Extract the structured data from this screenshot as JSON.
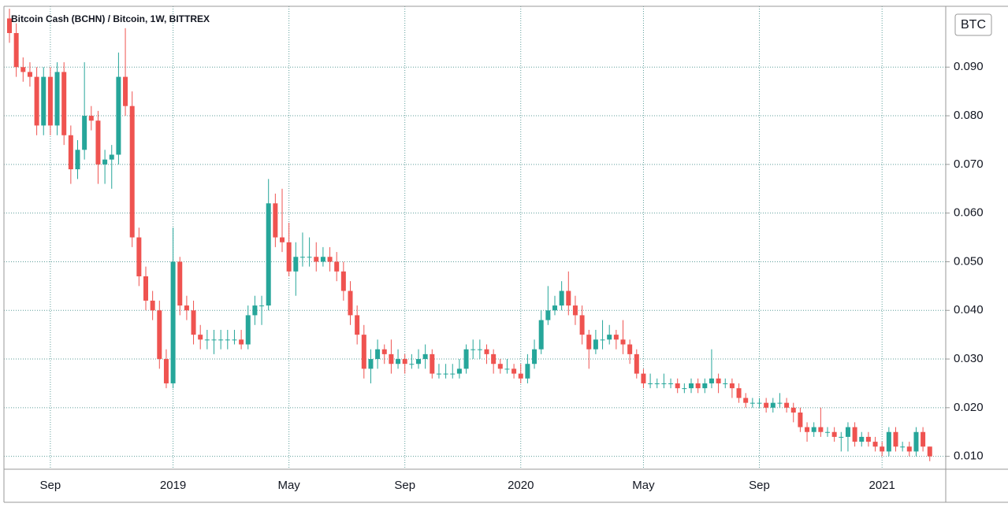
{
  "chart_data": {
    "type": "candlestick",
    "title": "Bitcoin Cash (BCHN) / Bitcoin, 1W, BITTREX",
    "currency_label": "BTC",
    "up_color": "#26a69a",
    "down_color": "#ef5350",
    "grid": true,
    "ylim": [
      0.008,
      0.1025
    ],
    "yticks": [
      {
        "value": 0.01,
        "label": "0.010"
      },
      {
        "value": 0.02,
        "label": "0.020"
      },
      {
        "value": 0.03,
        "label": "0.030"
      },
      {
        "value": 0.04,
        "label": "0.040"
      },
      {
        "value": 0.05,
        "label": "0.050"
      },
      {
        "value": 0.06,
        "label": "0.060"
      },
      {
        "value": 0.07,
        "label": "0.070"
      },
      {
        "value": 0.08,
        "label": "0.080"
      },
      {
        "value": 0.09,
        "label": "0.090"
      }
    ],
    "categories": [
      null,
      null,
      null,
      null,
      null,
      null,
      "Sep",
      null,
      null,
      null,
      null,
      null,
      null,
      null,
      null,
      null,
      null,
      null,
      null,
      null,
      null,
      null,
      null,
      null,
      "2019",
      null,
      null,
      null,
      null,
      null,
      null,
      null,
      null,
      null,
      null,
      null,
      null,
      null,
      null,
      null,
      null,
      "May",
      null,
      null,
      null,
      null,
      null,
      null,
      null,
      null,
      null,
      null,
      null,
      null,
      null,
      null,
      null,
      null,
      "Sep",
      null,
      null,
      null,
      null,
      null,
      null,
      null,
      null,
      null,
      null,
      null,
      null,
      null,
      null,
      null,
      null,
      "2020",
      null,
      null,
      null,
      null,
      null,
      null,
      null,
      null,
      null,
      null,
      null,
      null,
      null,
      null,
      null,
      null,
      null,
      "May",
      null,
      null,
      null,
      null,
      null,
      null,
      null,
      null,
      null,
      null,
      null,
      null,
      null,
      null,
      null,
      null,
      "Sep",
      null,
      null,
      null,
      null,
      null,
      null,
      null,
      null,
      null,
      null,
      null,
      null,
      null,
      null,
      null,
      null,
      null,
      "2021",
      null,
      null,
      null,
      null,
      null,
      null,
      null
    ],
    "open": [
      0.1,
      0.097,
      0.09,
      0.089,
      0.088,
      0.078,
      0.088,
      0.078,
      0.089,
      0.076,
      0.069,
      0.073,
      0.08,
      0.079,
      0.07,
      0.071,
      0.072,
      0.088,
      0.082,
      0.055,
      0.047,
      0.042,
      0.04,
      0.03,
      0.025,
      0.05,
      0.041,
      0.04,
      0.035,
      0.034,
      0.034,
      0.034,
      0.034,
      0.034,
      0.034,
      0.033,
      0.039,
      0.041,
      0.041,
      0.062,
      0.055,
      0.054,
      0.048,
      0.051,
      0.051,
      0.051,
      0.05,
      0.051,
      0.05,
      0.048,
      0.044,
      0.039,
      0.035,
      0.028,
      0.03,
      0.032,
      0.031,
      0.029,
      0.03,
      0.029,
      0.029,
      0.03,
      0.031,
      0.027,
      0.027,
      0.027,
      0.027,
      0.028,
      0.032,
      0.032,
      0.032,
      0.031,
      0.029,
      0.028,
      0.028,
      0.027,
      0.026,
      0.029,
      0.032,
      0.038,
      0.04,
      0.041,
      0.044,
      0.041,
      0.039,
      0.035,
      0.032,
      0.034,
      0.034,
      0.035,
      0.034,
      0.033,
      0.031,
      0.027,
      0.025,
      0.025,
      0.025,
      0.025,
      0.025,
      0.024,
      0.024,
      0.025,
      0.024,
      0.025,
      0.026,
      0.025,
      0.025,
      0.024,
      0.022,
      0.021,
      0.021,
      0.021,
      0.02,
      0.021,
      0.021,
      0.02,
      0.019,
      0.016,
      0.015,
      0.016,
      0.015,
      0.015,
      0.014,
      0.014,
      0.016,
      0.013,
      0.014,
      0.013,
      0.012,
      0.011,
      0.015,
      0.012,
      0.012,
      0.011,
      0.015,
      0.012
    ],
    "high": [
      0.102,
      0.099,
      0.092,
      0.091,
      0.09,
      0.09,
      0.09,
      0.091,
      0.091,
      0.078,
      0.075,
      0.091,
      0.082,
      0.081,
      0.073,
      0.074,
      0.093,
      0.098,
      0.085,
      0.057,
      0.049,
      0.044,
      0.042,
      0.032,
      0.057,
      0.051,
      0.043,
      0.042,
      0.037,
      0.036,
      0.036,
      0.036,
      0.036,
      0.036,
      0.036,
      0.041,
      0.043,
      0.043,
      0.067,
      0.064,
      0.065,
      0.058,
      0.054,
      0.056,
      0.055,
      0.054,
      0.053,
      0.053,
      0.052,
      0.05,
      0.046,
      0.041,
      0.037,
      0.032,
      0.034,
      0.033,
      0.034,
      0.032,
      0.031,
      0.031,
      0.032,
      0.033,
      0.032,
      0.029,
      0.029,
      0.029,
      0.03,
      0.033,
      0.034,
      0.034,
      0.033,
      0.032,
      0.03,
      0.03,
      0.029,
      0.029,
      0.031,
      0.034,
      0.04,
      0.045,
      0.043,
      0.046,
      0.048,
      0.043,
      0.041,
      0.036,
      0.036,
      0.038,
      0.037,
      0.036,
      0.038,
      0.034,
      0.032,
      0.028,
      0.027,
      0.026,
      0.027,
      0.026,
      0.026,
      0.025,
      0.026,
      0.026,
      0.026,
      0.032,
      0.027,
      0.026,
      0.026,
      0.025,
      0.023,
      0.022,
      0.022,
      0.022,
      0.022,
      0.023,
      0.022,
      0.021,
      0.02,
      0.017,
      0.017,
      0.02,
      0.016,
      0.016,
      0.015,
      0.017,
      0.017,
      0.015,
      0.015,
      0.014,
      0.013,
      0.016,
      0.016,
      0.013,
      0.013,
      0.016,
      0.016,
      0.012
    ],
    "low": [
      0.095,
      0.088,
      0.087,
      0.086,
      0.076,
      0.076,
      0.076,
      0.076,
      0.074,
      0.066,
      0.067,
      0.071,
      0.077,
      0.066,
      0.066,
      0.065,
      0.07,
      0.08,
      0.053,
      0.045,
      0.04,
      0.038,
      0.028,
      0.024,
      0.024,
      0.039,
      0.038,
      0.033,
      0.032,
      0.032,
      0.031,
      0.032,
      0.032,
      0.033,
      0.032,
      0.032,
      0.037,
      0.037,
      0.04,
      0.053,
      0.052,
      0.047,
      0.043,
      0.049,
      0.049,
      0.048,
      0.049,
      0.048,
      0.046,
      0.042,
      0.037,
      0.033,
      0.026,
      0.025,
      0.028,
      0.029,
      0.027,
      0.028,
      0.027,
      0.028,
      0.028,
      0.028,
      0.026,
      0.026,
      0.026,
      0.026,
      0.026,
      0.027,
      0.03,
      0.03,
      0.029,
      0.027,
      0.027,
      0.027,
      0.026,
      0.025,
      0.025,
      0.028,
      0.031,
      0.037,
      0.039,
      0.04,
      0.039,
      0.037,
      0.033,
      0.028,
      0.031,
      0.032,
      0.033,
      0.032,
      0.031,
      0.029,
      0.026,
      0.024,
      0.024,
      0.024,
      0.024,
      0.024,
      0.023,
      0.023,
      0.023,
      0.023,
      0.023,
      0.024,
      0.023,
      0.024,
      0.022,
      0.021,
      0.02,
      0.02,
      0.02,
      0.019,
      0.019,
      0.02,
      0.019,
      0.017,
      0.015,
      0.013,
      0.014,
      0.014,
      0.014,
      0.013,
      0.011,
      0.011,
      0.012,
      0.012,
      0.012,
      0.011,
      0.01,
      0.01,
      0.011,
      0.011,
      0.01,
      0.01,
      0.011,
      0.009
    ],
    "close": [
      0.097,
      0.09,
      0.089,
      0.088,
      0.078,
      0.088,
      0.078,
      0.089,
      0.076,
      0.069,
      0.073,
      0.08,
      0.079,
      0.07,
      0.071,
      0.072,
      0.088,
      0.082,
      0.055,
      0.047,
      0.042,
      0.04,
      0.03,
      0.025,
      0.05,
      0.041,
      0.04,
      0.035,
      0.034,
      0.034,
      0.034,
      0.034,
      0.034,
      0.034,
      0.033,
      0.039,
      0.041,
      0.041,
      0.062,
      0.055,
      0.054,
      0.048,
      0.051,
      0.051,
      0.051,
      0.05,
      0.051,
      0.05,
      0.048,
      0.044,
      0.039,
      0.035,
      0.028,
      0.03,
      0.032,
      0.031,
      0.029,
      0.03,
      0.029,
      0.029,
      0.03,
      0.031,
      0.027,
      0.027,
      0.027,
      0.027,
      0.028,
      0.032,
      0.032,
      0.032,
      0.031,
      0.029,
      0.028,
      0.028,
      0.027,
      0.026,
      0.029,
      0.032,
      0.038,
      0.04,
      0.041,
      0.044,
      0.041,
      0.039,
      0.035,
      0.032,
      0.034,
      0.034,
      0.035,
      0.034,
      0.033,
      0.031,
      0.027,
      0.025,
      0.025,
      0.025,
      0.025,
      0.025,
      0.024,
      0.024,
      0.025,
      0.024,
      0.025,
      0.026,
      0.025,
      0.025,
      0.024,
      0.022,
      0.021,
      0.021,
      0.021,
      0.02,
      0.021,
      0.021,
      0.02,
      0.019,
      0.016,
      0.015,
      0.016,
      0.015,
      0.015,
      0.014,
      0.014,
      0.016,
      0.013,
      0.014,
      0.013,
      0.012,
      0.011,
      0.015,
      0.012,
      0.012,
      0.011,
      0.015,
      0.012,
      0.01
    ]
  }
}
